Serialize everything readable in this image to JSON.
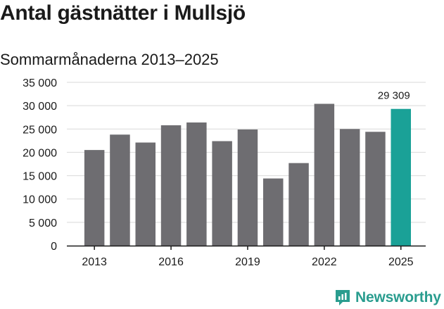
{
  "header": {
    "title": "Antal gästnätter i Mullsjö",
    "subtitle": "Sommarmånaderna 2013–2025"
  },
  "brand": {
    "name": "Newsworthy",
    "color": "#2a9d8f"
  },
  "colors": {
    "bar": "#6e6d71",
    "highlight": "#1aa197",
    "grid": "#d9d9d9",
    "axis": "#1a1a1a"
  },
  "chart_data": {
    "type": "bar",
    "categories": [
      "2013",
      "2014",
      "2015",
      "2016",
      "2017",
      "2018",
      "2019",
      "2020",
      "2021",
      "2022",
      "2023",
      "2024",
      "2025"
    ],
    "values": [
      20500,
      23800,
      22100,
      25800,
      26400,
      22400,
      24900,
      14400,
      17700,
      30400,
      25000,
      24400,
      29309
    ],
    "highlight_index": 12,
    "highlight_label": "29 309",
    "ylim": [
      0,
      35000
    ],
    "yticks": [
      0,
      5000,
      10000,
      15000,
      20000,
      25000,
      30000,
      35000
    ],
    "ytick_labels": [
      "0",
      "5 000",
      "10 000",
      "15 000",
      "20 000",
      "25 000",
      "30 000",
      "35 000"
    ],
    "xtick_labels": [
      "2013",
      "2016",
      "2019",
      "2022",
      "2025"
    ],
    "xtick_indices": [
      0,
      3,
      6,
      9,
      12
    ],
    "grid": true
  }
}
